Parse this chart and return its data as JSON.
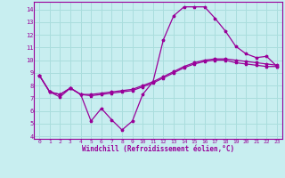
{
  "xlabel": "Windchill (Refroidissement éolien,°C)",
  "bg_color": "#c8eef0",
  "line_color": "#990099",
  "grid_color": "#aadddd",
  "xlim": [
    -0.5,
    23.5
  ],
  "ylim": [
    3.8,
    14.6
  ],
  "yticks": [
    4,
    5,
    6,
    7,
    8,
    9,
    10,
    11,
    12,
    13,
    14
  ],
  "xticks": [
    0,
    1,
    2,
    3,
    4,
    5,
    6,
    7,
    8,
    9,
    10,
    11,
    12,
    13,
    14,
    15,
    16,
    17,
    18,
    19,
    20,
    21,
    22,
    23
  ],
  "series1_x": [
    0,
    1,
    2,
    3,
    4,
    5,
    6,
    7,
    8,
    9,
    10,
    11,
    12,
    13,
    14,
    15,
    16,
    17,
    18,
    19,
    20,
    21,
    22,
    23
  ],
  "series1_y": [
    8.8,
    7.5,
    7.1,
    7.8,
    7.3,
    5.2,
    6.2,
    5.3,
    4.5,
    5.2,
    7.3,
    8.3,
    11.6,
    13.5,
    14.2,
    14.2,
    14.2,
    13.3,
    12.3,
    11.1,
    10.5,
    10.2,
    10.3,
    9.5
  ],
  "series2_x": [
    0,
    1,
    2,
    3,
    4,
    5,
    6,
    7,
    8,
    9,
    10,
    11,
    12,
    13,
    14,
    15,
    16,
    17,
    18,
    19,
    20,
    21,
    22,
    23
  ],
  "series2_y": [
    8.8,
    7.5,
    7.3,
    7.8,
    7.3,
    7.3,
    7.4,
    7.5,
    7.6,
    7.7,
    8.0,
    8.3,
    8.7,
    9.1,
    9.5,
    9.8,
    10.0,
    10.1,
    10.1,
    10.0,
    9.9,
    9.8,
    9.7,
    9.6
  ],
  "series3_x": [
    0,
    1,
    2,
    3,
    4,
    5,
    6,
    7,
    8,
    9,
    10,
    11,
    12,
    13,
    14,
    15,
    16,
    17,
    18,
    19,
    20,
    21,
    22,
    23
  ],
  "series3_y": [
    8.8,
    7.5,
    7.3,
    7.8,
    7.3,
    7.2,
    7.3,
    7.4,
    7.5,
    7.6,
    7.9,
    8.2,
    8.6,
    9.0,
    9.4,
    9.7,
    9.9,
    10.0,
    10.0,
    9.8,
    9.7,
    9.6,
    9.5,
    9.5
  ]
}
